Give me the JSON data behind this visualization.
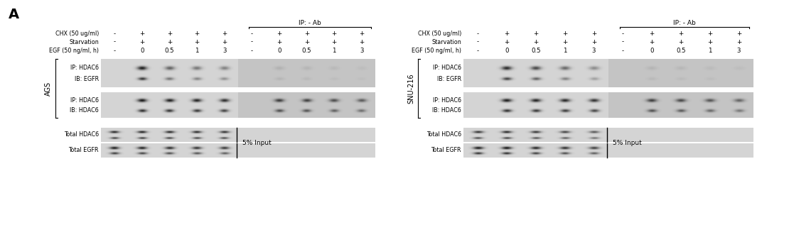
{
  "panel_label": "A",
  "left_cell_line": "AGS",
  "right_cell_line": "SNU-216",
  "ip_label": "IP: - Ab",
  "row_labels_chx": "CHX (50 ug/ml)",
  "row_labels_starv": "Starvation",
  "row_labels_egf": "EGF (50 ng/ml, h)",
  "col_signs_chx": [
    "-",
    "+",
    "+",
    "+",
    "+",
    "-",
    "+",
    "+",
    "+",
    "+"
  ],
  "col_signs_starv": [
    "-",
    "+",
    "+",
    "+",
    "+",
    "-",
    "+",
    "+",
    "+",
    "+"
  ],
  "col_vals_egf": [
    "-",
    "0",
    "0.5",
    "1",
    "3",
    "-",
    "0",
    "0.5",
    "1",
    "3"
  ],
  "blot_rows": [
    {
      "label1": "IP: HDAC6",
      "label2": "IB: EGFR",
      "type": "ip_egfr"
    },
    {
      "label1": "IP: HDAC6",
      "label2": "IB: HDAC6",
      "type": "ip_hdac6"
    },
    {
      "label1": "Total HDAC6",
      "label2": "",
      "type": "total_hdac6"
    },
    {
      "label1": "Total EGFR",
      "label2": "",
      "type": "total_egfr"
    }
  ],
  "background_color": "#ffffff",
  "text_color": "#000000",
  "blot_bg_normal": "#d8d8d8",
  "blot_bg_ab": "#c8c8c8"
}
